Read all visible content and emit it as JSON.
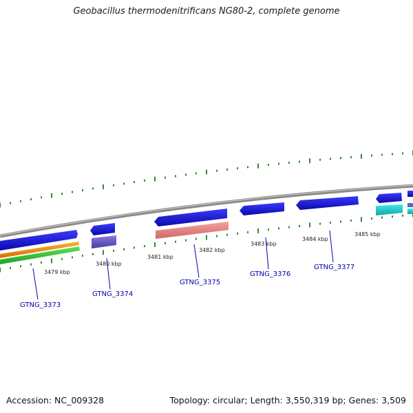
{
  "title": "Geobacillus thermodenitrificans NG80-2, complete genome",
  "footer": {
    "accession": "Accession: NC_009328",
    "summary": "Topology: circular; Length: 3,550,319 bp; Genes: 3,509"
  },
  "colors": {
    "backbone": "#8a8a8a",
    "gene_forward": "#1a1adc",
    "tick": "#2f8a2f",
    "label": "#0000aa"
  },
  "scale_labels": [
    "3479 kbp",
    "3480 kbp",
    "3481 kbp",
    "3482 kbp",
    "3483 kbp",
    "3484 kbp",
    "3485 kbp"
  ],
  "genes": [
    {
      "name": "GTNG_3373",
      "color": "#1a1adc"
    },
    {
      "name": "GTNG_3374",
      "color": "#1a1adc"
    },
    {
      "name": "GTNG_3375",
      "color": "#1a1adc"
    },
    {
      "name": "GTNG_3376",
      "color": "#1a1adc"
    },
    {
      "name": "GTNG_3377",
      "color": "#1a1adc"
    }
  ]
}
